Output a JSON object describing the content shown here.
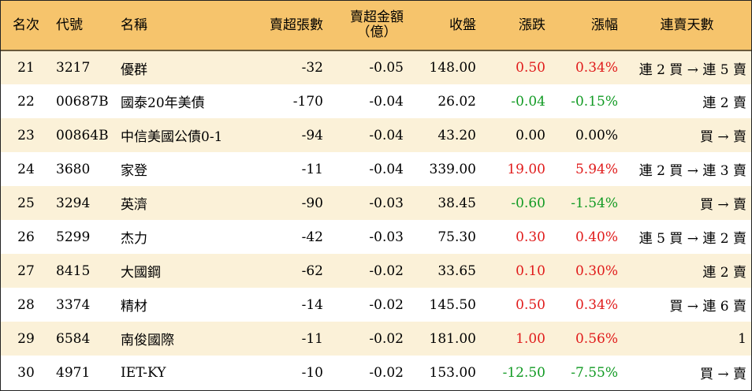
{
  "headers": {
    "rank": "名次",
    "code": "代號",
    "name": "名稱",
    "net_sell_lots": "賣超張數",
    "net_sell_amount_line1": "賣超金額",
    "net_sell_amount_line2": "（億）",
    "close": "收盤",
    "change": "漲跌",
    "change_pct": "漲幅",
    "streak": "連賣天數"
  },
  "rows": [
    {
      "rank": "21",
      "code": "3217",
      "name": "優群",
      "lots": "-32",
      "amount": "-0.05",
      "close": "148.00",
      "change": "0.50",
      "pct": "0.34%",
      "dir": "up",
      "streak": "連 2 買 → 連 5 賣"
    },
    {
      "rank": "22",
      "code": "00687B",
      "name": "國泰20年美債",
      "lots": "-170",
      "amount": "-0.04",
      "close": "26.02",
      "change": "-0.04",
      "pct": "-0.15%",
      "dir": "down",
      "streak": "連 2 賣"
    },
    {
      "rank": "23",
      "code": "00864B",
      "name": "中信美國公債0-1",
      "lots": "-94",
      "amount": "-0.04",
      "close": "43.20",
      "change": "0.00",
      "pct": "0.00%",
      "dir": "flat",
      "streak": "買 → 賣"
    },
    {
      "rank": "24",
      "code": "3680",
      "name": "家登",
      "lots": "-11",
      "amount": "-0.04",
      "close": "339.00",
      "change": "19.00",
      "pct": "5.94%",
      "dir": "up",
      "streak": "連 2 買 → 連 3 賣"
    },
    {
      "rank": "25",
      "code": "3294",
      "name": "英濟",
      "lots": "-90",
      "amount": "-0.03",
      "close": "38.45",
      "change": "-0.60",
      "pct": "-1.54%",
      "dir": "down",
      "streak": "買 → 賣"
    },
    {
      "rank": "26",
      "code": "5299",
      "name": "杰力",
      "lots": "-42",
      "amount": "-0.03",
      "close": "75.30",
      "change": "0.30",
      "pct": "0.40%",
      "dir": "up",
      "streak": "連 5 買 → 連 2 賣"
    },
    {
      "rank": "27",
      "code": "8415",
      "name": "大國鋼",
      "lots": "-62",
      "amount": "-0.02",
      "close": "33.65",
      "change": "0.10",
      "pct": "0.30%",
      "dir": "up",
      "streak": "連 2 賣"
    },
    {
      "rank": "28",
      "code": "3374",
      "name": "精材",
      "lots": "-14",
      "amount": "-0.02",
      "close": "145.50",
      "change": "0.50",
      "pct": "0.34%",
      "dir": "up",
      "streak": "買 → 連 6 賣"
    },
    {
      "rank": "29",
      "code": "6584",
      "name": "南俊國際",
      "lots": "-11",
      "amount": "-0.02",
      "close": "181.00",
      "change": "1.00",
      "pct": "0.56%",
      "dir": "up",
      "streak": "1"
    },
    {
      "rank": "30",
      "code": "4971",
      "name": "IET-KY",
      "lots": "-10",
      "amount": "-0.02",
      "close": "153.00",
      "change": "-12.50",
      "pct": "-7.55%",
      "dir": "down",
      "streak": "買 → 賣"
    }
  ],
  "colors": {
    "header_bg": "#f6c46c",
    "row_alt_bg": "#fbf1d8",
    "up": "#e01b1b",
    "down": "#119a23",
    "flat": "#000000"
  }
}
